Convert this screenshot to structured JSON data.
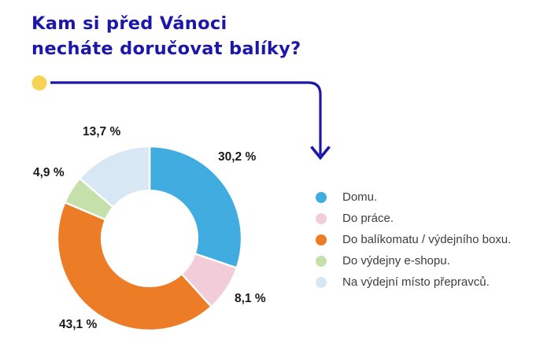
{
  "title": {
    "line1": "Kam si před Vánoci",
    "line2": "necháte doručovat balíky?"
  },
  "colors": {
    "title": "#1b17aa",
    "arrow": "#1b17aa",
    "bullet": "#f8d254",
    "label_text": "#1a1a1a",
    "legend_text": "#3d3d3d",
    "background": "#ffffff"
  },
  "chart_data": {
    "type": "pie",
    "subtype": "donut",
    "title": "Kam si před Vánoci necháte doručovat balíky?",
    "legend_position": "right",
    "inner_radius_ratio": 0.52,
    "start_angle_deg": 0,
    "direction": "clockwise",
    "series": [
      {
        "label": "Domu.",
        "value": 30.2,
        "pct_label": "30,2 %",
        "color": "#41acdf"
      },
      {
        "label": "Do práce.",
        "value": 8.1,
        "pct_label": "8,1 %",
        "color": "#f2ccd9"
      },
      {
        "label": "Do balíkomatu / výdejního boxu.",
        "value": 43.1,
        "pct_label": "43,1 %",
        "color": "#ec7c25"
      },
      {
        "label": "Do výdejny e-shopu.",
        "value": 4.9,
        "pct_label": "4,9 %",
        "color": "#c6e0ac"
      },
      {
        "label": "Na výdejní místo přepravců.",
        "value": 13.7,
        "pct_label": "13,7 %",
        "color": "#d7e8f4"
      }
    ]
  }
}
